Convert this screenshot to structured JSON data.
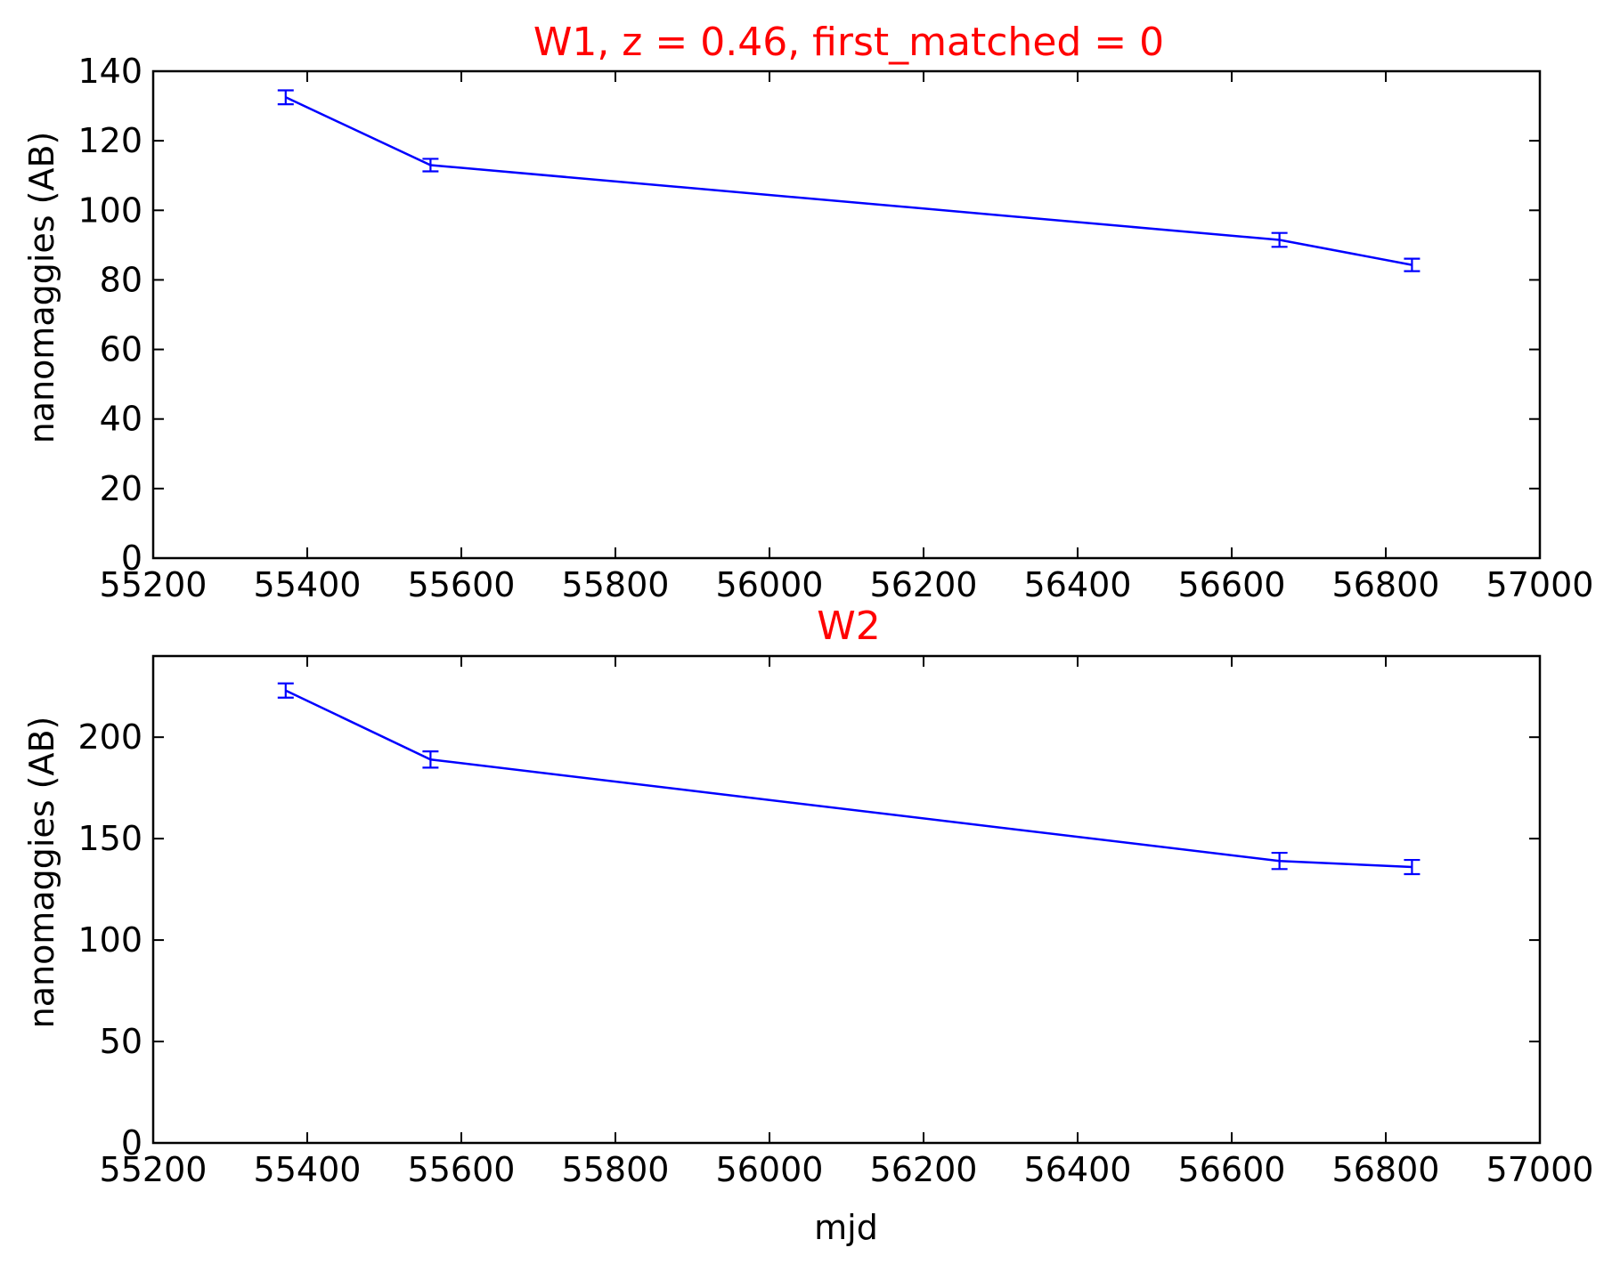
{
  "colors": {
    "title": "#ff0000",
    "series": "#0000ff",
    "axes": "#000000",
    "background": "#ffffff"
  },
  "chart_data": [
    {
      "type": "line",
      "title": "W1, z = 0.46, first_matched = 0",
      "xlabel": "",
      "ylabel": "nanomaggies (AB)",
      "xlim": [
        55200,
        57000
      ],
      "ylim": [
        0,
        140
      ],
      "xticks": [
        "55200",
        "55400",
        "55600",
        "55800",
        "56000",
        "56200",
        "56400",
        "56600",
        "56800",
        "57000"
      ],
      "yticks": [
        "0",
        "20",
        "40",
        "60",
        "80",
        "100",
        "120",
        "140"
      ],
      "grid": false,
      "legend": "none",
      "series": [
        {
          "x": [
            55372,
            55560,
            56662,
            56834
          ],
          "y": [
            132.5,
            113.0,
            91.5,
            84.3
          ],
          "yerr": [
            2.0,
            1.8,
            2.0,
            1.8
          ]
        }
      ]
    },
    {
      "type": "line",
      "title": "W2",
      "xlabel": "mjd",
      "ylabel": "nanomaggies (AB)",
      "xlim": [
        55200,
        57000
      ],
      "ylim": [
        0,
        240
      ],
      "xticks": [
        "55200",
        "55400",
        "55600",
        "55800",
        "56000",
        "56200",
        "56400",
        "56600",
        "56800",
        "57000"
      ],
      "yticks": [
        "0",
        "50",
        "100",
        "150",
        "200"
      ],
      "grid": false,
      "legend": "none",
      "series": [
        {
          "x": [
            55372,
            55560,
            56662,
            56834
          ],
          "y": [
            223.0,
            189.0,
            139.0,
            136.0
          ],
          "yerr": [
            3.5,
            4.0,
            4.0,
            3.5
          ]
        }
      ]
    }
  ]
}
